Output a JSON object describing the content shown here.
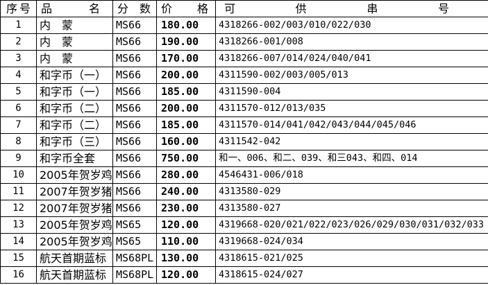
{
  "colors": {
    "background": "#ffffff",
    "border": "#000000",
    "text": "#000000"
  },
  "table": {
    "headers": [
      {
        "key": "no",
        "label": "序号"
      },
      {
        "key": "name",
        "label": "品名"
      },
      {
        "key": "grade",
        "label": "分数"
      },
      {
        "key": "price",
        "label": "价格"
      },
      {
        "key": "serials",
        "label": "可供串号"
      }
    ],
    "rows": [
      {
        "no": "1",
        "name": "内　蒙",
        "grade": "MS66",
        "price": "180.00",
        "serials": "4318266-002/003/010/022/030"
      },
      {
        "no": "2",
        "name": "内　蒙",
        "grade": "MS66",
        "price": "190.00",
        "serials": "4318266-001/008"
      },
      {
        "no": "3",
        "name": "内　蒙",
        "grade": "MS66",
        "price": "170.00",
        "serials": "4318266-007/014/024/040/041"
      },
      {
        "no": "4",
        "name": "和字币（一）",
        "grade": "MS66",
        "price": "200.00",
        "serials": "4311590-002/003/005/013"
      },
      {
        "no": "5",
        "name": "和字币（一）",
        "grade": "MS66",
        "price": "185.00",
        "serials": "4311590-004"
      },
      {
        "no": "6",
        "name": "和字币（二）",
        "grade": "MS66",
        "price": "200.00",
        "serials": "4311570-012/013/035"
      },
      {
        "no": "7",
        "name": "和字币（二）",
        "grade": "MS66",
        "price": "185.00",
        "serials": "4311570-014/041/042/043/044/045/046"
      },
      {
        "no": "8",
        "name": "和字币（三）",
        "grade": "MS66",
        "price": "160.00",
        "serials": "4311542-042"
      },
      {
        "no": "9",
        "name": "和字币全套",
        "grade": "MS66",
        "price": "750.00",
        "serials": "和一、006、和二、039、和三043、和四、014"
      },
      {
        "no": "10",
        "name": "2005年贺岁鸡",
        "grade": "MS66",
        "price": "280.00",
        "serials": "4546431-006/018"
      },
      {
        "no": "11",
        "name": "2007年贺岁猪",
        "grade": "MS66",
        "price": "240.00",
        "serials": "4313580-029"
      },
      {
        "no": "12",
        "name": "2007年贺岁猪",
        "grade": "MS66",
        "price": "230.00",
        "serials": "4313580-027"
      },
      {
        "no": "13",
        "name": "2005年贺岁鸡",
        "grade": "MS65",
        "price": "120.00",
        "serials": "4319668-020/021/022/023/026/029/030/031/032/033"
      },
      {
        "no": "14",
        "name": "2005年贺岁鸡",
        "grade": "MS65",
        "price": "110.00",
        "serials": "4319668-024/034"
      },
      {
        "no": "15",
        "name": "航天首期蓝标",
        "grade": "MS68PL",
        "price": "130.00",
        "serials": "4318615-021/025"
      },
      {
        "no": "16",
        "name": "航天首期蓝标",
        "grade": "MS68PL",
        "price": "120.00",
        "serials": "4318615-024/027"
      }
    ]
  }
}
